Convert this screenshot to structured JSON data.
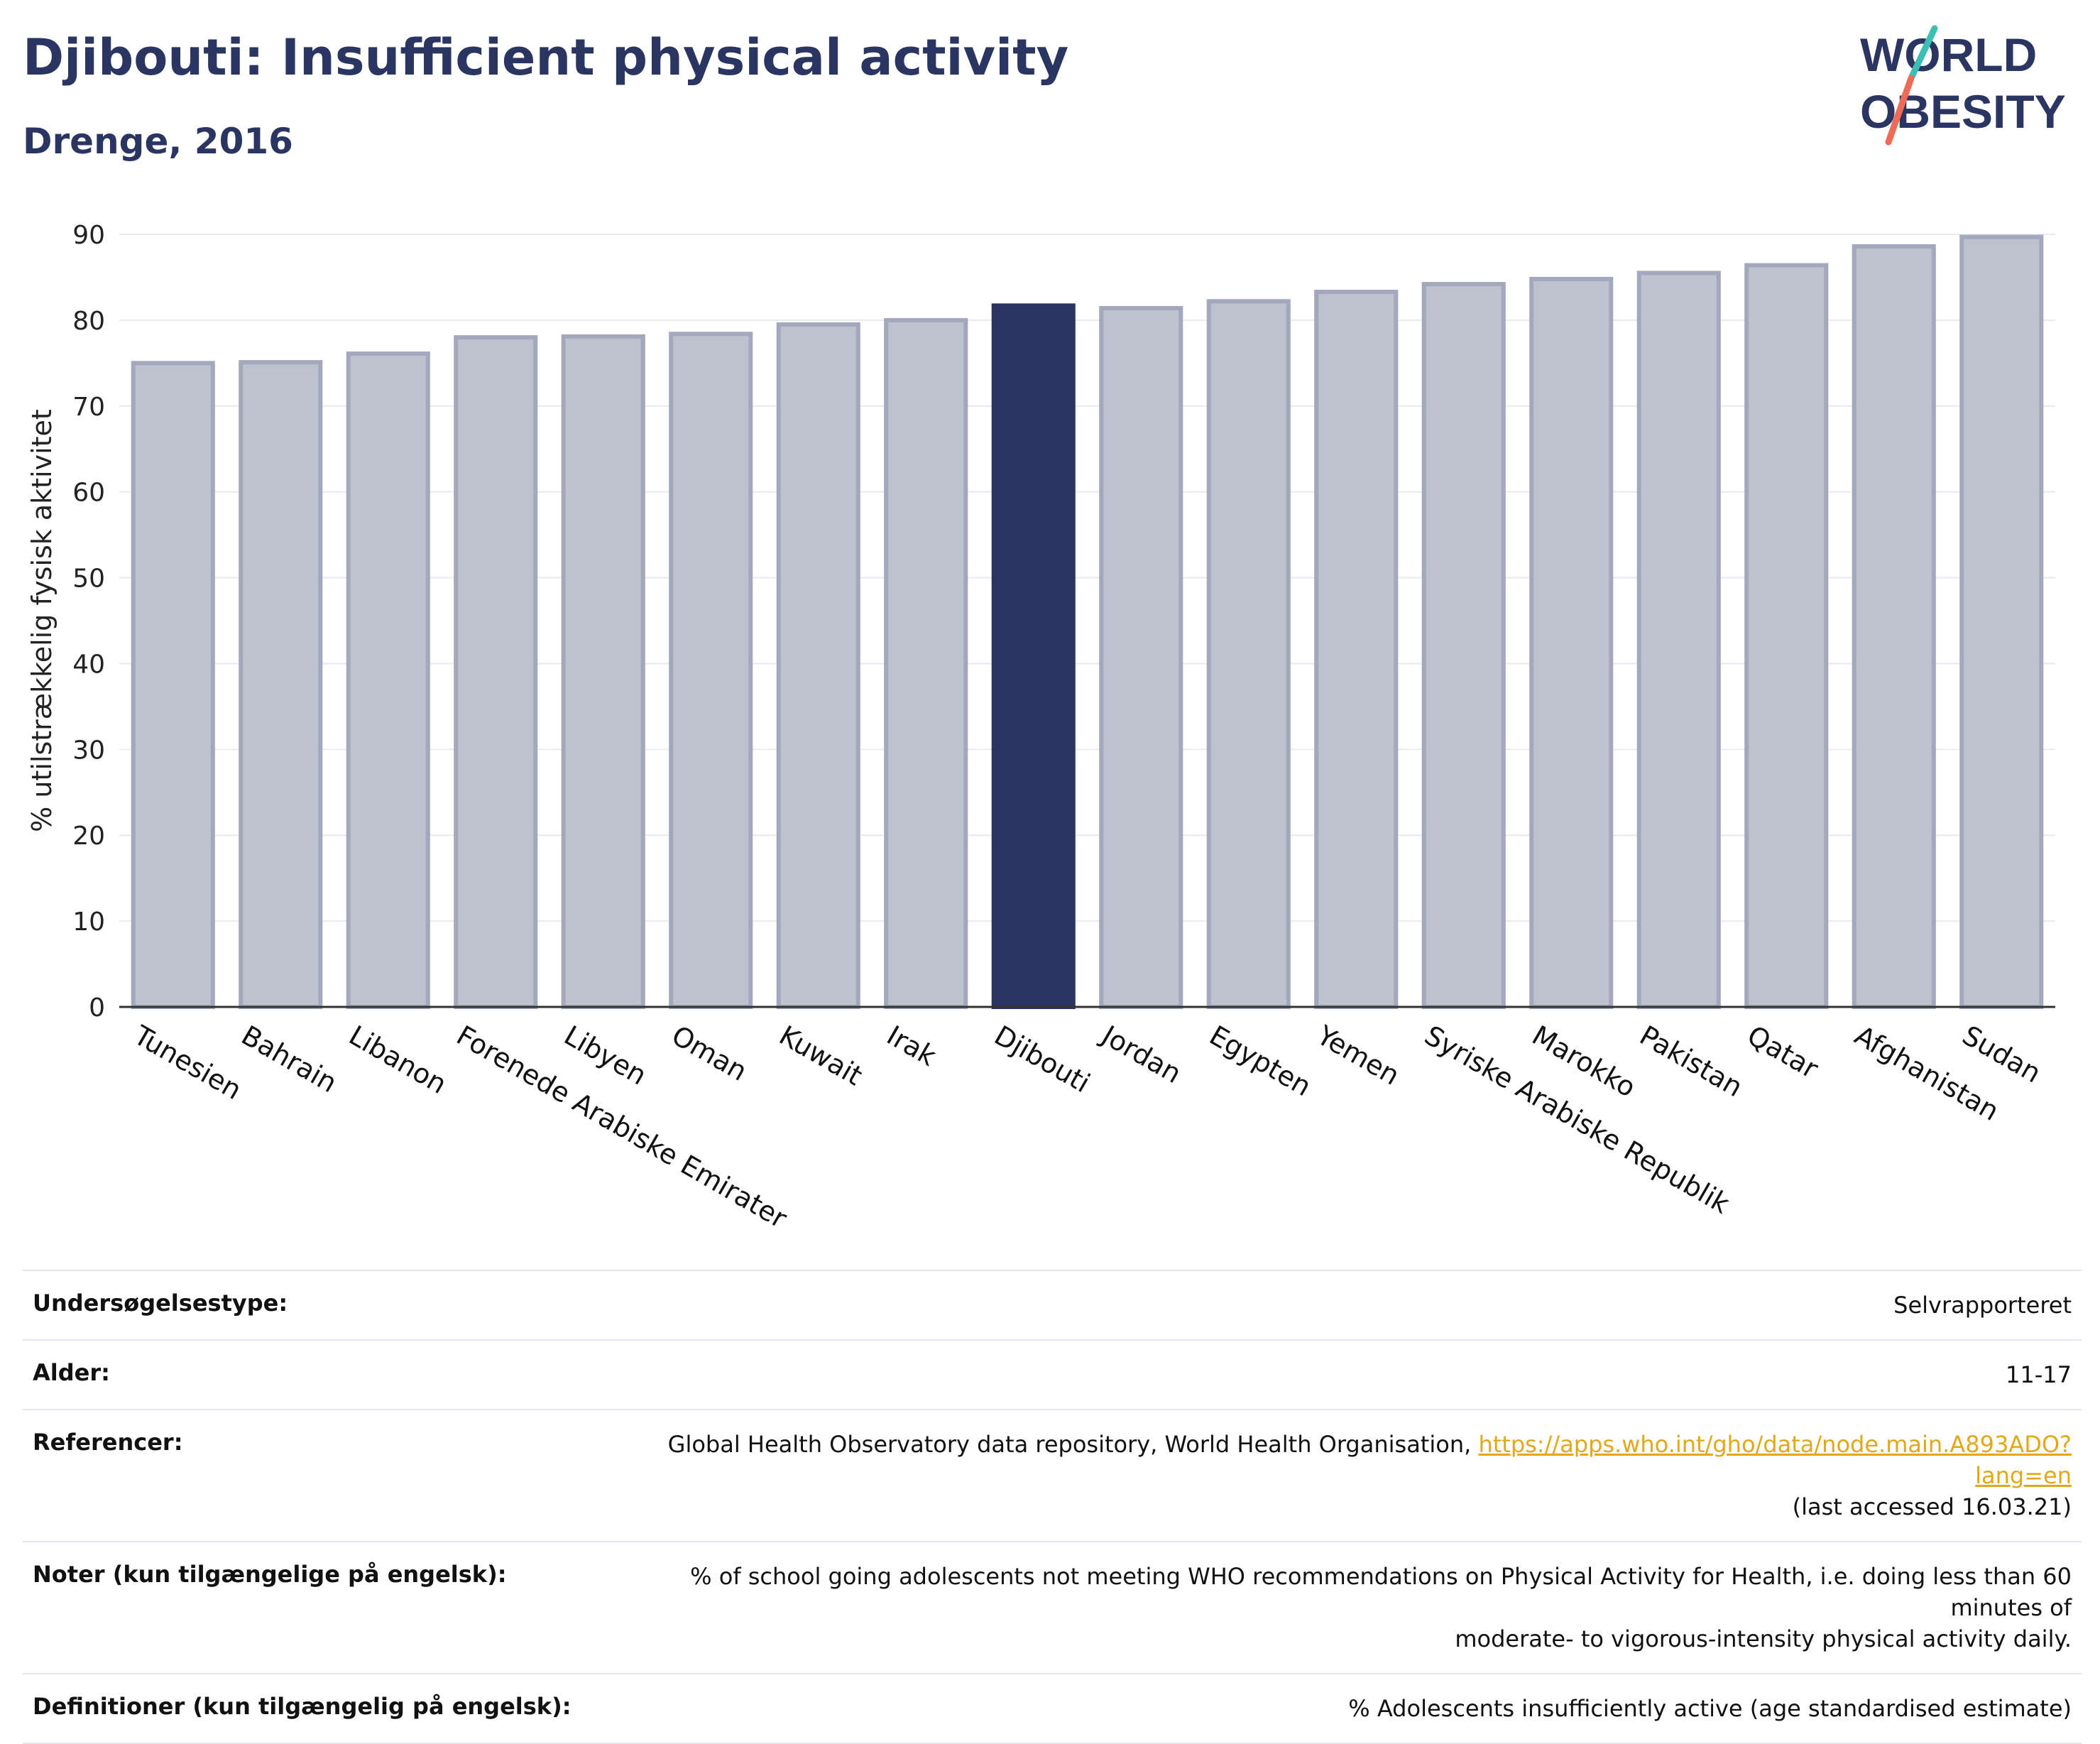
{
  "header": {
    "title": "Djibouti: Insufficient physical activity",
    "subtitle": "Drenge, 2016"
  },
  "logo": {
    "line1": "WORLD",
    "line2": "OBESITY",
    "colors": {
      "text": "#2b3561",
      "teal": "#3bbfb4",
      "coral": "#ee6b57"
    }
  },
  "chart_data": {
    "type": "bar",
    "categories": [
      "Tunesien",
      "Bahrain",
      "Libanon",
      "Forenede Arabiske Emirater",
      "Libyen",
      "Oman",
      "Kuwait",
      "Irak",
      "Djibouti",
      "Jordan",
      "Egypten",
      "Yemen",
      "Syriske Arabiske Republik",
      "Marokko",
      "Pakistan",
      "Qatar",
      "Afghanistan",
      "Sudan"
    ],
    "values": [
      75.0,
      75.1,
      76.1,
      78.0,
      78.1,
      78.4,
      79.5,
      80.0,
      81.7,
      81.4,
      82.2,
      83.3,
      84.2,
      84.8,
      85.5,
      86.4,
      88.6,
      89.7
    ],
    "highlight": "Djibouti",
    "ylabel": "% utilstrækkelig fysisk aktivitet",
    "xlabel": "",
    "ylim": [
      0,
      90
    ],
    "yticks": [
      0,
      10,
      20,
      30,
      40,
      50,
      60,
      70,
      80,
      90
    ],
    "grid": true,
    "colors": {
      "bar_fill": "#bec1ce",
      "bar_stroke": "#a3a8bd",
      "highlight_fill": "#2b3561",
      "grid": "#e8eaf0",
      "axis": "#333333"
    }
  },
  "info": {
    "rows": [
      {
        "label": "Undersøgelsestype:",
        "value": "Selvrapporteret"
      },
      {
        "label": "Alder:",
        "value": "11-17"
      },
      {
        "label": "Referencer:",
        "value": "Global Health Observatory data repository, World Health Organisation,",
        "link": "https://apps.who.int/gho/data/node.main.A893ADO?lang=en",
        "value2": "(last accessed 16.03.21)"
      },
      {
        "label": "Noter (kun tilgængelige på engelsk):",
        "value": "% of school going adolescents not meeting WHO recommendations on Physical Activity for Health, i.e. doing less than 60 minutes of",
        "value2": "moderate- to vigorous-intensity physical activity daily."
      },
      {
        "label": "Definitioner (kun tilgængelig på engelsk):",
        "value": "% Adolescents insufficiently active (age standardised estimate)"
      }
    ]
  }
}
